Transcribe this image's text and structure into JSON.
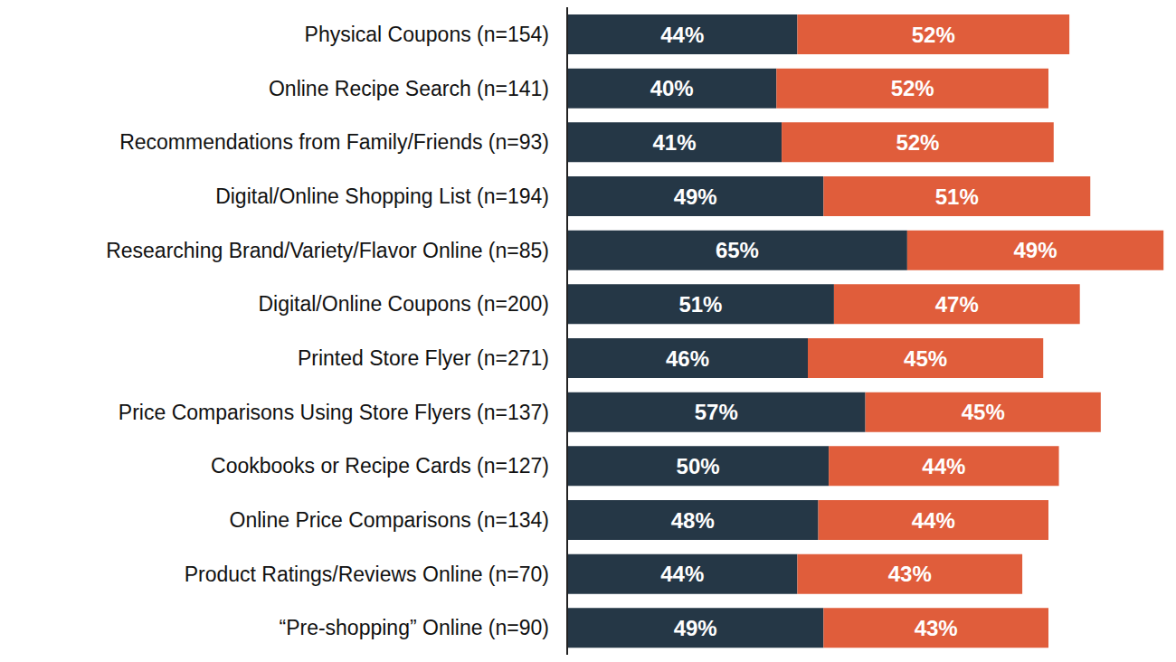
{
  "chart_data": {
    "type": "bar",
    "orientation": "horizontal",
    "stacked": true,
    "data_labels": true,
    "grid": false,
    "tick_labels": "y",
    "categories": [
      "Physical Coupons (n=154)",
      "Online Recipe Search (n=141)",
      "Recommendations from Family/Friends (n=93)",
      "Digital/Online Shopping List (n=194)",
      "Researching Brand/Variety/Flavor Online (n=85)",
      "Digital/Online Coupons (n=200)",
      "Printed Store Flyer (n=271)",
      "Price Comparisons Using Store Flyers (n=137)",
      "Cookbooks or Recipe Cards (n=127)",
      "Online Price Comparisons (n=134)",
      "Product Ratings/Reviews Online  (n=70)",
      "“Pre-shopping” Online (n=90)"
    ],
    "series": [
      {
        "color": "#253746",
        "values": [
          44,
          40,
          41,
          49,
          65,
          51,
          46,
          57,
          50,
          48,
          44,
          49
        ],
        "value_labels": [
          "44%",
          "40%",
          "41%",
          "49%",
          "65%",
          "51%",
          "46%",
          "57%",
          "50%",
          "48%",
          "44%",
          "49%"
        ]
      },
      {
        "color": "#e05d3b",
        "values": [
          52,
          52,
          52,
          51,
          49,
          47,
          45,
          45,
          44,
          44,
          43,
          43
        ],
        "value_labels": [
          "52%",
          "52%",
          "52%",
          "51%",
          "49%",
          "47%",
          "45%",
          "45%",
          "44%",
          "44%",
          "43%",
          "43%"
        ]
      }
    ],
    "xlim": [
      0,
      115
    ],
    "xticks": [
      0,
      115
    ]
  }
}
